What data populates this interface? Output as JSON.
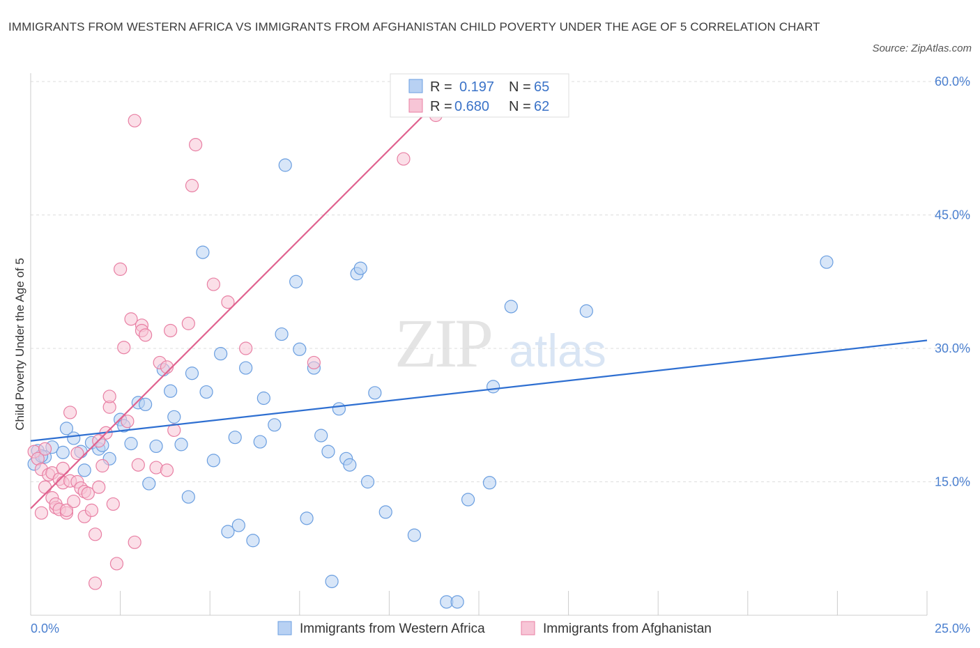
{
  "chart_data": {
    "type": "scatter",
    "title": "IMMIGRANTS FROM WESTERN AFRICA VS IMMIGRANTS FROM AFGHANISTAN CHILD POVERTY UNDER THE AGE OF 5 CORRELATION CHART",
    "source": "Source: ZipAtlas.com",
    "ylabel": "Child Poverty Under the Age of 5",
    "xlim": [
      0,
      25
    ],
    "ylim": [
      0,
      60
    ],
    "x_tick_labels": [
      "0.0%",
      "25.0%"
    ],
    "y_ticks": [
      15,
      30,
      45,
      60
    ],
    "y_tick_labels": [
      "15.0%",
      "30.0%",
      "45.0%",
      "60.0%"
    ],
    "watermark": {
      "zip": "ZIP",
      "atlas": "atlas"
    },
    "stats_legend": {
      "r_label": "R =",
      "n_label": "N =",
      "rows": [
        {
          "r": "0.197",
          "n": "65"
        },
        {
          "r": "0.680",
          "n": "62"
        }
      ]
    },
    "series": [
      {
        "name": "Immigrants from Western Africa",
        "color": "#6a9ee0",
        "fill": "#b8d1f3",
        "trend": {
          "x": [
            0,
            25
          ],
          "y": [
            19.6,
            30.9
          ]
        },
        "points": [
          [
            0.2,
            18.5
          ],
          [
            0.4,
            17.8
          ],
          [
            0.1,
            17.0
          ],
          [
            0.6,
            18.9
          ],
          [
            0.9,
            18.3
          ],
          [
            1.0,
            21.0
          ],
          [
            1.2,
            19.9
          ],
          [
            1.4,
            18.4
          ],
          [
            1.5,
            16.3
          ],
          [
            1.7,
            19.4
          ],
          [
            1.9,
            18.7
          ],
          [
            2.0,
            19.1
          ],
          [
            2.2,
            17.6
          ],
          [
            2.5,
            22.0
          ],
          [
            2.6,
            21.3
          ],
          [
            2.8,
            19.3
          ],
          [
            3.0,
            23.9
          ],
          [
            3.2,
            23.7
          ],
          [
            3.3,
            14.8
          ],
          [
            3.5,
            19.0
          ],
          [
            3.7,
            27.6
          ],
          [
            3.9,
            25.2
          ],
          [
            4.0,
            22.3
          ],
          [
            4.2,
            19.2
          ],
          [
            4.4,
            13.3
          ],
          [
            4.5,
            27.2
          ],
          [
            4.8,
            40.8
          ],
          [
            4.9,
            25.1
          ],
          [
            5.1,
            17.4
          ],
          [
            5.3,
            29.4
          ],
          [
            5.5,
            9.4
          ],
          [
            5.7,
            20.0
          ],
          [
            5.8,
            10.1
          ],
          [
            6.0,
            27.8
          ],
          [
            6.2,
            8.4
          ],
          [
            6.4,
            19.5
          ],
          [
            6.5,
            24.4
          ],
          [
            6.8,
            21.4
          ],
          [
            7.0,
            31.6
          ],
          [
            7.1,
            50.6
          ],
          [
            7.4,
            37.5
          ],
          [
            7.5,
            29.9
          ],
          [
            7.7,
            10.9
          ],
          [
            7.9,
            27.8
          ],
          [
            8.1,
            20.2
          ],
          [
            8.3,
            18.4
          ],
          [
            8.4,
            3.8
          ],
          [
            8.6,
            23.2
          ],
          [
            8.8,
            17.6
          ],
          [
            8.9,
            16.9
          ],
          [
            9.1,
            38.4
          ],
          [
            9.2,
            39.0
          ],
          [
            9.4,
            15.0
          ],
          [
            9.6,
            25.0
          ],
          [
            9.9,
            11.6
          ],
          [
            10.7,
            9.0
          ],
          [
            11.6,
            1.5
          ],
          [
            11.9,
            1.5
          ],
          [
            12.2,
            13.0
          ],
          [
            12.8,
            14.9
          ],
          [
            12.9,
            25.7
          ],
          [
            13.4,
            34.7
          ],
          [
            15.5,
            34.2
          ],
          [
            22.2,
            39.7
          ],
          [
            0.3,
            17.9
          ]
        ]
      },
      {
        "name": "Immigrants from Afghanistan",
        "color": "#e87fa3",
        "fill": "#f7c5d6",
        "trend": {
          "x": [
            0,
            11.9
          ],
          "y": [
            12.0,
            60.0
          ]
        },
        "points": [
          [
            0.1,
            18.4
          ],
          [
            0.2,
            17.6
          ],
          [
            0.3,
            16.4
          ],
          [
            0.3,
            11.5
          ],
          [
            0.4,
            14.4
          ],
          [
            0.5,
            15.8
          ],
          [
            0.6,
            16.0
          ],
          [
            0.6,
            13.2
          ],
          [
            0.7,
            12.1
          ],
          [
            0.7,
            12.5
          ],
          [
            0.8,
            11.9
          ],
          [
            0.8,
            15.3
          ],
          [
            0.9,
            14.9
          ],
          [
            0.9,
            16.5
          ],
          [
            1.0,
            11.5
          ],
          [
            1.0,
            11.8
          ],
          [
            1.1,
            15.1
          ],
          [
            1.1,
            22.8
          ],
          [
            1.2,
            12.8
          ],
          [
            1.3,
            15.0
          ],
          [
            1.3,
            18.2
          ],
          [
            1.4,
            14.3
          ],
          [
            1.5,
            13.9
          ],
          [
            1.6,
            13.7
          ],
          [
            1.5,
            11.1
          ],
          [
            1.7,
            11.8
          ],
          [
            1.8,
            3.6
          ],
          [
            1.8,
            9.1
          ],
          [
            1.9,
            14.4
          ],
          [
            2.0,
            16.8
          ],
          [
            2.1,
            20.5
          ],
          [
            2.2,
            23.4
          ],
          [
            2.2,
            24.6
          ],
          [
            2.3,
            12.5
          ],
          [
            2.4,
            5.8
          ],
          [
            2.5,
            38.9
          ],
          [
            2.6,
            30.1
          ],
          [
            2.7,
            21.8
          ],
          [
            2.8,
            33.3
          ],
          [
            2.9,
            8.2
          ],
          [
            2.9,
            55.6
          ],
          [
            3.0,
            16.9
          ],
          [
            3.1,
            32.6
          ],
          [
            3.1,
            32.0
          ],
          [
            3.2,
            31.5
          ],
          [
            3.5,
            16.6
          ],
          [
            3.6,
            28.4
          ],
          [
            3.8,
            27.9
          ],
          [
            3.8,
            16.3
          ],
          [
            3.9,
            32.0
          ],
          [
            4.0,
            20.8
          ],
          [
            4.4,
            32.8
          ],
          [
            4.5,
            48.3
          ],
          [
            4.6,
            52.9
          ],
          [
            5.1,
            37.2
          ],
          [
            5.5,
            35.2
          ],
          [
            6.0,
            30.0
          ],
          [
            7.9,
            28.4
          ],
          [
            10.4,
            51.3
          ],
          [
            11.3,
            56.2
          ],
          [
            0.4,
            18.7
          ],
          [
            1.9,
            19.6
          ]
        ]
      }
    ]
  }
}
